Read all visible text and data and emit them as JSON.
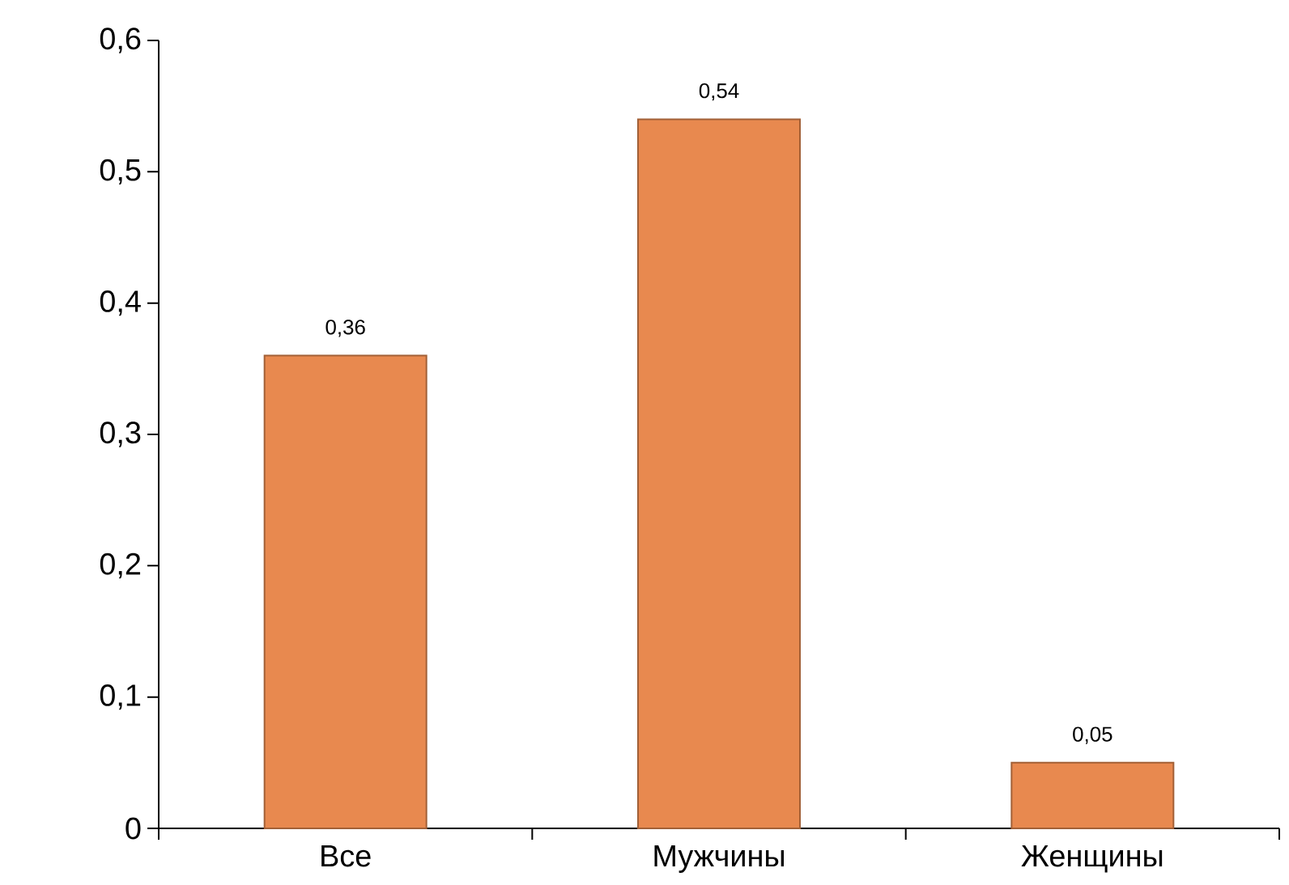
{
  "chart_data": {
    "type": "bar",
    "categories": [
      "Все",
      "Мужчины",
      "Женщины"
    ],
    "values": [
      0.36,
      0.54,
      0.05
    ],
    "value_labels": [
      "0,36",
      "0,54",
      "0,05"
    ],
    "color": "#e8894f",
    "ylim": [
      0,
      0.6
    ],
    "yticks": [
      0,
      {
        "value": 0.1,
        "label": "0,1"
      },
      {
        "value": 0.2,
        "label": "0,2"
      },
      {
        "value": 0.3,
        "label": "0,3"
      },
      {
        "value": 0.4,
        "label": "0,4"
      },
      {
        "value": 0.5,
        "label": "0,5"
      },
      {
        "value": 0.6,
        "label": "0,6"
      }
    ],
    "grid": false
  }
}
